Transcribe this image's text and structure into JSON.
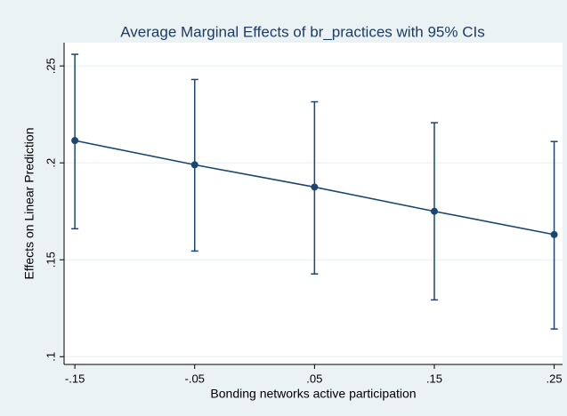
{
  "chart_data": {
    "type": "line",
    "title": "Average Marginal Effects of br_practices with 95% CIs",
    "xlabel": "Bonding networks active participation",
    "ylabel": "Effects on Linear Prediction",
    "x": [
      -0.15,
      -0.05,
      0.05,
      0.15,
      0.25
    ],
    "series": [
      {
        "color": "#1a476f",
        "values": [
          0.2115,
          0.199,
          0.1875,
          0.175,
          0.163
        ],
        "ci_lower": [
          0.166,
          0.1545,
          0.1427,
          0.1293,
          0.1143
        ],
        "ci_upper": [
          0.256,
          0.243,
          0.2315,
          0.2207,
          0.211
        ]
      }
    ],
    "xlim": [
      -0.159,
      0.257
    ],
    "ylim": [
      0.096,
      0.262
    ],
    "xticks": [
      {
        "value": -0.15,
        "label": "-.15"
      },
      {
        "value": -0.05,
        "label": "-.05"
      },
      {
        "value": 0.05,
        "label": ".05"
      },
      {
        "value": 0.15,
        "label": ".15"
      },
      {
        "value": 0.25,
        "label": ".25"
      }
    ],
    "yticks": [
      {
        "value": 0.1,
        "label": ".1"
      },
      {
        "value": 0.15,
        "label": ".15"
      },
      {
        "value": 0.2,
        "label": ".2"
      },
      {
        "value": 0.25,
        "label": ".25"
      }
    ],
    "grid": true
  }
}
